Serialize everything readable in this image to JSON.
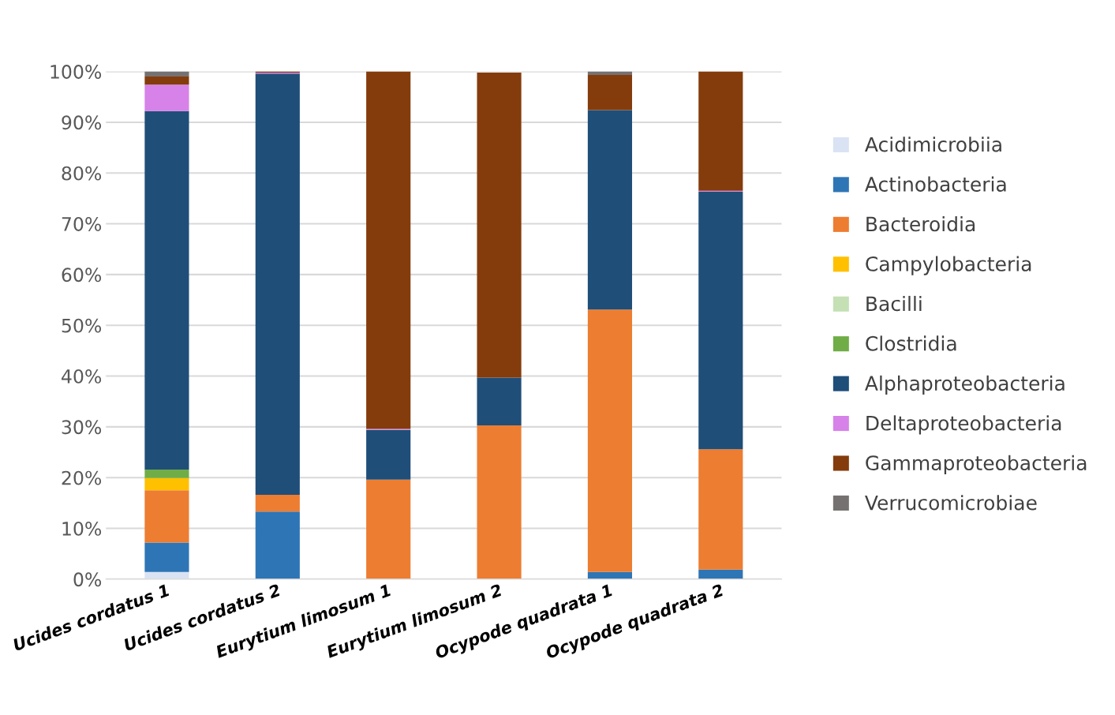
{
  "chart_data": {
    "type": "bar",
    "stacked": true,
    "categories": [
      "Ucides cordatus 1",
      "Ucides cordatus 2",
      "Eurytium limosum 1",
      "Eurytium limosum 2",
      "Ocypode quadrata 1",
      "Ocypode quadrata 2"
    ],
    "series": [
      {
        "name": "Acidimicrobiia",
        "color": "#dae3f3",
        "values": [
          1.4,
          0,
          0,
          0,
          0,
          0
        ]
      },
      {
        "name": "Actinobacteria",
        "color": "#2e75b6",
        "values": [
          5.8,
          13.3,
          0,
          0,
          1.4,
          1.9
        ]
      },
      {
        "name": "Bacteroidia",
        "color": "#ed7d31",
        "values": [
          10.3,
          3.3,
          19.6,
          30.3,
          51.7,
          23.7
        ]
      },
      {
        "name": "Campylobacteria",
        "color": "#ffc000",
        "values": [
          2.4,
          0,
          0,
          0,
          0,
          0
        ]
      },
      {
        "name": "Bacilli",
        "color": "#c5e0b4",
        "values": [
          0,
          0,
          0,
          null,
          0,
          0
        ]
      },
      {
        "name": "Clostridia",
        "color": "#70ad47",
        "values": [
          1.7,
          0,
          0,
          0,
          0,
          0
        ]
      },
      {
        "name": "Alphaproteobacteria",
        "color": "#1f4e79",
        "values": [
          70.6,
          83.0,
          9.8,
          9.4,
          39.3,
          50.7
        ]
      },
      {
        "name": "Deltaproteobacteria",
        "color": "#d682e8",
        "values": [
          5.2,
          0.2,
          0.2,
          0,
          0,
          0.2
        ]
      },
      {
        "name": "Gammaproteobacteria",
        "color": "#843c0c",
        "values": [
          1.6,
          0.2,
          70.4,
          60.1,
          6.9,
          23.5
        ]
      },
      {
        "name": "Verrucomicrobiae",
        "color": "#767171",
        "values": [
          1.0,
          0,
          0,
          0,
          0.7,
          0
        ]
      }
    ],
    "ylim": [
      0,
      100
    ],
    "yticks": [
      {
        "value": 0,
        "label": "0%"
      },
      {
        "value": 10,
        "label": "10%"
      },
      {
        "value": 20,
        "label": "20%"
      },
      {
        "value": 30,
        "label": "30%"
      },
      {
        "value": 40,
        "label": "40%"
      },
      {
        "value": 50,
        "label": "50%"
      },
      {
        "value": 60,
        "label": "60%"
      },
      {
        "value": 70,
        "label": "70%"
      },
      {
        "value": 80,
        "label": "80%"
      },
      {
        "value": 90,
        "label": "90%"
      },
      {
        "value": 100,
        "label": "100%"
      }
    ],
    "grid": "y",
    "legend": "right"
  }
}
